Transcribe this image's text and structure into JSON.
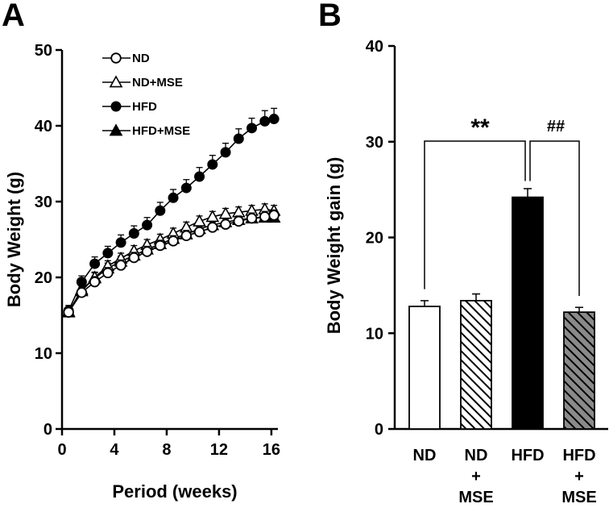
{
  "chart_data": [
    {
      "panel": "A",
      "type": "line",
      "xlabel": "Period (weeks)",
      "ylabel": "Body Weight (g)",
      "xlim": [
        0,
        16.5
      ],
      "ylim": [
        0,
        50
      ],
      "xticks": [
        "0",
        "4",
        "8",
        "12",
        "16"
      ],
      "yticks": [
        "0",
        "10",
        "20",
        "30",
        "40",
        "50"
      ],
      "x": [
        0.5,
        1.5,
        2.5,
        3.5,
        4.5,
        5.5,
        6.5,
        7.5,
        8.5,
        9.5,
        10.5,
        11.5,
        12.5,
        13.5,
        14.5,
        15.5,
        16.2
      ],
      "series": [
        {
          "name": "ND",
          "marker": "circle-open",
          "values": [
            15.4,
            18.0,
            19.4,
            20.6,
            21.6,
            22.6,
            23.4,
            24.2,
            24.8,
            25.5,
            26.0,
            26.6,
            27.0,
            27.4,
            27.8,
            28.0,
            28.2
          ],
          "errors": [
            0.6,
            0.7,
            0.7,
            0.7,
            0.7,
            0.7,
            0.7,
            0.7,
            0.7,
            0.7,
            0.7,
            0.7,
            0.7,
            0.7,
            0.7,
            0.7,
            0.7
          ]
        },
        {
          "name": "ND+MSE",
          "marker": "triangle-open",
          "values": [
            15.5,
            18.2,
            20.0,
            21.5,
            22.5,
            23.5,
            24.3,
            25.0,
            25.8,
            26.6,
            27.4,
            28.0,
            28.4,
            28.6,
            28.8,
            29.0,
            28.8
          ],
          "errors": [
            0.6,
            0.7,
            0.7,
            0.7,
            0.7,
            0.7,
            0.7,
            0.7,
            0.7,
            0.7,
            0.7,
            0.7,
            0.7,
            0.7,
            0.7,
            0.7,
            0.7
          ]
        },
        {
          "name": "HFD",
          "marker": "circle-filled",
          "values": [
            15.6,
            19.4,
            21.8,
            23.2,
            24.6,
            25.8,
            26.9,
            28.8,
            30.5,
            31.8,
            33.3,
            34.9,
            36.5,
            38.3,
            39.7,
            40.6,
            40.9
          ],
          "errors": [
            0.7,
            0.8,
            0.9,
            0.9,
            1.0,
            1.0,
            1.0,
            1.1,
            1.1,
            1.1,
            1.2,
            1.2,
            1.2,
            1.3,
            1.3,
            1.4,
            1.4
          ]
        },
        {
          "name": "HFD+MSE",
          "marker": "triangle-filled",
          "values": [
            15.4,
            18.4,
            19.9,
            21.2,
            22.1,
            22.9,
            23.7,
            24.4,
            25.1,
            25.7,
            26.4,
            26.9,
            27.3,
            27.6,
            27.8,
            27.9,
            27.9
          ],
          "errors": [
            0.6,
            0.7,
            0.7,
            0.7,
            0.7,
            0.7,
            0.7,
            0.7,
            0.7,
            0.7,
            0.7,
            0.7,
            0.7,
            0.7,
            0.7,
            0.7,
            0.7
          ]
        }
      ],
      "legend": [
        "ND",
        "ND+MSE",
        "HFD",
        "HFD+MSE"
      ]
    },
    {
      "panel": "B",
      "type": "bar",
      "ylabel": "Body Weight gain (g)",
      "ylim": [
        0,
        40
      ],
      "yticks": [
        "0",
        "10",
        "20",
        "30",
        "40"
      ],
      "categories": [
        {
          "lines": [
            "ND"
          ]
        },
        {
          "lines": [
            "ND",
            "+",
            "MSE"
          ]
        },
        {
          "lines": [
            "HFD"
          ]
        },
        {
          "lines": [
            "HFD",
            "+",
            "MSE"
          ]
        }
      ],
      "values": [
        12.8,
        13.4,
        24.2,
        12.2
      ],
      "errors": [
        0.6,
        0.7,
        0.9,
        0.5
      ],
      "fills": [
        "white",
        "hatch-white",
        "black",
        "hatch-gray"
      ],
      "annotations": [
        {
          "from": 0,
          "to": 2,
          "label": "**",
          "y": 30
        },
        {
          "from": 2,
          "to": 3,
          "label": "##",
          "y": 30
        }
      ]
    }
  ]
}
